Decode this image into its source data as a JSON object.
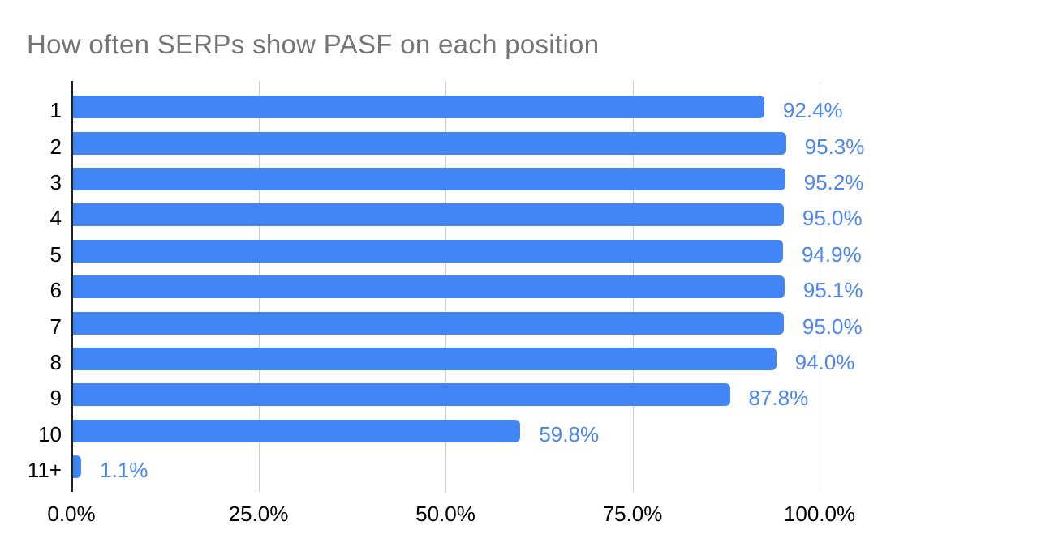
{
  "page": {
    "background": "#ffffff"
  },
  "chart_data": {
    "type": "bar",
    "orientation": "horizontal",
    "title": "How often SERPs show PASF on each position",
    "categories": [
      "1",
      "2",
      "3",
      "4",
      "5",
      "6",
      "7",
      "8",
      "9",
      "10",
      "11+"
    ],
    "values": [
      92.4,
      95.3,
      95.2,
      95.0,
      94.9,
      95.1,
      95.0,
      94.0,
      87.8,
      59.8,
      1.1
    ],
    "value_labels": [
      "92.4%",
      "95.3%",
      "95.2%",
      "95.0%",
      "94.9%",
      "95.1%",
      "95.0%",
      "94.0%",
      "87.8%",
      "59.8%",
      "1.1%"
    ],
    "x_ticks": [
      {
        "value": 0,
        "label": "0.0%"
      },
      {
        "value": 25,
        "label": "25.0%"
      },
      {
        "value": 50,
        "label": "50.0%"
      },
      {
        "value": 75,
        "label": "75.0%"
      },
      {
        "value": 100,
        "label": "100.0%"
      }
    ],
    "xlim": [
      0,
      100
    ],
    "xlabel": "",
    "ylabel": "",
    "grid": "vertical-only",
    "legend": "none",
    "colors": {
      "bar": "#4285f4",
      "value_label": "#4d86ec",
      "title": "#757575",
      "axis_text": "#000000",
      "gridline": "#cccccc",
      "axis_line": "#212121",
      "background": "#ffffff"
    }
  }
}
